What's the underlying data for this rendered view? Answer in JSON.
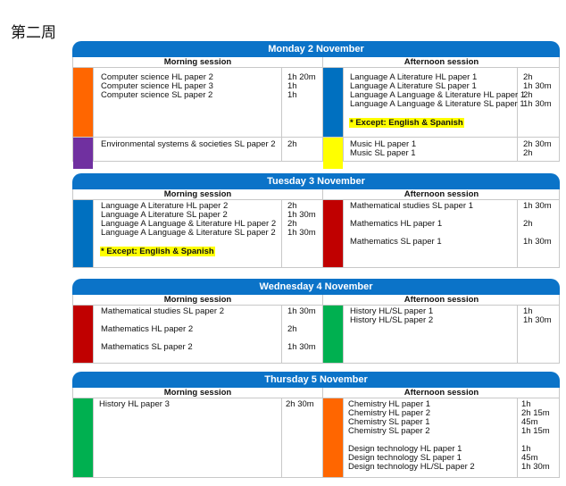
{
  "page": {
    "title": "第二周"
  },
  "session_labels": {
    "morning": "Morning session",
    "afternoon": "Afternoon session"
  },
  "colors": {
    "header_blue": "#0b73c8",
    "orange": "#ff6600",
    "purple": "#7030a0",
    "blue": "#0070c0",
    "yellow": "#ffff00",
    "red": "#c00000",
    "green": "#00b050"
  },
  "days": [
    {
      "title": "Monday 2 November",
      "morning": [
        {
          "color": "orange",
          "items": [
            {
              "name": "Computer science HL paper 2",
              "duration": "1h 20m"
            },
            {
              "name": "Computer science HL paper 3",
              "duration": "1h"
            },
            {
              "name": "Computer science SL paper 2",
              "duration": "1h"
            }
          ]
        },
        {
          "color": "purple",
          "items": [
            {
              "name": "Environmental systems & societies SL paper 2",
              "duration": "2h"
            }
          ]
        }
      ],
      "afternoon": [
        {
          "color": "blue",
          "items": [
            {
              "name": "Language A Literature HL paper 1",
              "duration": "2h"
            },
            {
              "name": "Language A Literature SL paper 1",
              "duration": "1h 30m"
            },
            {
              "name": "Language A Language & Literature HL paper 1",
              "duration": "2h"
            },
            {
              "name": "Language A Language & Literature SL paper 1",
              "duration": "1h 30m"
            }
          ],
          "note": "* Except: English & Spanish"
        },
        {
          "color": "yellow",
          "items": [
            {
              "name": "Music HL paper 1",
              "duration": "2h 30m"
            },
            {
              "name": "Music SL paper 1",
              "duration": "2h"
            }
          ]
        }
      ]
    },
    {
      "title": "Tuesday 3 November",
      "morning": [
        {
          "color": "blue",
          "items": [
            {
              "name": "Language A Literature HL paper 2",
              "duration": "2h"
            },
            {
              "name": "Language A Literature SL paper 2",
              "duration": "1h 30m"
            },
            {
              "name": "Language A Language & Literature HL paper 2",
              "duration": "2h"
            },
            {
              "name": "Language A Language & Literature SL paper 2",
              "duration": "1h 30m"
            }
          ],
          "note": "* Except: English & Spanish"
        }
      ],
      "afternoon": [
        {
          "color": "red",
          "items": [
            {
              "name": "Mathematical studies SL paper 1",
              "duration": "1h 30m"
            },
            {
              "name": "Mathematics HL paper 1",
              "duration": "2h"
            },
            {
              "name": "Mathematics SL paper 1",
              "duration": "1h 30m"
            }
          ]
        }
      ]
    },
    {
      "title": "Wednesday 4 November",
      "morning": [
        {
          "color": "red",
          "items": [
            {
              "name": "Mathematical studies SL paper 2",
              "duration": "1h 30m"
            },
            {
              "name": "Mathematics HL paper 2",
              "duration": "2h"
            },
            {
              "name": "Mathematics SL paper 2",
              "duration": "1h 30m"
            }
          ]
        }
      ],
      "afternoon": [
        {
          "color": "green",
          "items": [
            {
              "name": "History HL/SL paper 1",
              "duration": "1h"
            },
            {
              "name": "History HL/SL paper 2",
              "duration": "1h 30m"
            }
          ]
        }
      ]
    },
    {
      "title": "Thursday 5 November",
      "morning": [
        {
          "color": "green",
          "items": [
            {
              "name": "History HL paper 3",
              "duration": "2h 30m"
            }
          ]
        }
      ],
      "afternoon": [
        {
          "color": "orange",
          "items": [
            {
              "name": "Chemistry HL paper 1",
              "duration": "1h"
            },
            {
              "name": "Chemistry HL paper 2",
              "duration": "2h 15m"
            },
            {
              "name": "Chemistry SL paper 1",
              "duration": "45m"
            },
            {
              "name": "Chemistry SL paper 2",
              "duration": "1h 15m"
            },
            {
              "name": "Design technology HL paper 1",
              "duration": "1h"
            },
            {
              "name": "Design technology SL paper 1",
              "duration": "45m"
            },
            {
              "name": "Design technology HL/SL paper 2",
              "duration": "1h 30m"
            }
          ]
        }
      ]
    }
  ]
}
